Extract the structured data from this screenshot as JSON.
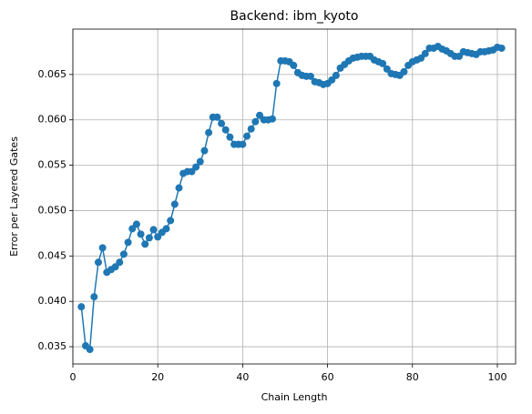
{
  "chart_data": {
    "type": "line",
    "title": "Backend: ibm_kyoto",
    "x_label": "Chain Length",
    "y_label": "Error per Layered Gates",
    "x": [
      2,
      3,
      4,
      5,
      6,
      7,
      8,
      9,
      10,
      11,
      12,
      13,
      14,
      15,
      16,
      17,
      18,
      19,
      20,
      21,
      22,
      23,
      24,
      25,
      26,
      27,
      28,
      29,
      30,
      31,
      32,
      33,
      34,
      35,
      36,
      37,
      38,
      39,
      40,
      41,
      42,
      43,
      44,
      45,
      46,
      47,
      48,
      49,
      50,
      51,
      52,
      53,
      54,
      55,
      56,
      57,
      58,
      59,
      60,
      61,
      62,
      63,
      64,
      65,
      66,
      67,
      68,
      69,
      70,
      71,
      72,
      73,
      74,
      75,
      76,
      77,
      78,
      79,
      80,
      81,
      82,
      83,
      84,
      85,
      86,
      87,
      88,
      89,
      90,
      91,
      92,
      93,
      94,
      95,
      96,
      97,
      98,
      99,
      100,
      101
    ],
    "series": [
      {
        "color": "#1f77b4",
        "values": [
          0.0394,
          0.0351,
          0.0347,
          0.0405,
          0.0443,
          0.0459,
          0.0432,
          0.0435,
          0.0438,
          0.0443,
          0.0452,
          0.0465,
          0.048,
          0.0485,
          0.0474,
          0.0463,
          0.047,
          0.0479,
          0.0471,
          0.0476,
          0.048,
          0.0489,
          0.0507,
          0.0525,
          0.0541,
          0.0543,
          0.0543,
          0.0548,
          0.0554,
          0.0566,
          0.0586,
          0.0603,
          0.0603,
          0.0596,
          0.0589,
          0.0581,
          0.0573,
          0.0573,
          0.0573,
          0.0582,
          0.059,
          0.0598,
          0.0605,
          0.06,
          0.06,
          0.0601,
          0.064,
          0.0665,
          0.0665,
          0.0664,
          0.066,
          0.0652,
          0.0649,
          0.0648,
          0.0648,
          0.0642,
          0.0641,
          0.0639,
          0.064,
          0.0644,
          0.0649,
          0.0657,
          0.0661,
          0.0665,
          0.0668,
          0.0669,
          0.067,
          0.067,
          0.067,
          0.0666,
          0.0664,
          0.0662,
          0.0656,
          0.0651,
          0.065,
          0.0649,
          0.0653,
          0.066,
          0.0664,
          0.0666,
          0.0668,
          0.0673,
          0.0679,
          0.0679,
          0.0681,
          0.0678,
          0.0676,
          0.0673,
          0.067,
          0.067,
          0.0675,
          0.0674,
          0.0673,
          0.0672,
          0.0675,
          0.0675,
          0.0676,
          0.0677,
          0.068,
          0.0679
        ]
      }
    ],
    "xlim": [
      0,
      104.3
    ],
    "ylim": [
      0.0331,
      0.07
    ],
    "xticks": [
      0,
      20,
      40,
      60,
      80,
      100
    ],
    "yticks": [
      0.035,
      {
        "value": 0.04,
        "label": "0.040"
      },
      0.045,
      {
        "value": 0.05,
        "label": "0.050"
      },
      0.055,
      {
        "value": 0.06,
        "label": "0.060"
      },
      0.065
    ],
    "grid": true,
    "markers": true
  }
}
